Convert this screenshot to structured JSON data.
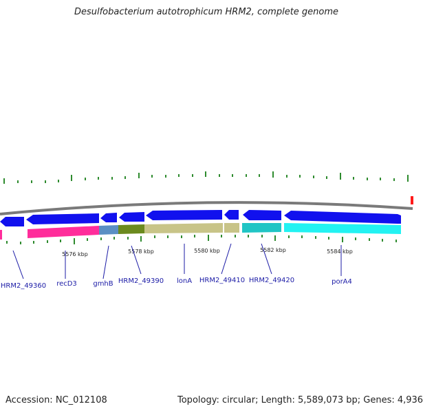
{
  "title": "Desulfobacterium autotrophicum HRM2, complete genome",
  "footer": {
    "accession": "Accession: NC_012108",
    "summary": "Topology: circular; Length: 5,589,073 bp; Genes: 4,936"
  },
  "scale_labels": [
    "5576 kbp",
    "5578 kbp",
    "5580 kbp",
    "5582 kbp",
    "5584 kbp"
  ],
  "genes": [
    {
      "name": "HRM2_49360"
    },
    {
      "name": "recD3"
    },
    {
      "name": "gmhB"
    },
    {
      "name": "HRM2_49390"
    },
    {
      "name": "lonA"
    },
    {
      "name": "HRM2_49410"
    },
    {
      "name": "HRM2_49420"
    },
    {
      "name": "porA4"
    }
  ],
  "colors": {
    "backbone": "#7a7a7a",
    "cds_arrow": "#1111ee",
    "tick": "#2e8b2e",
    "label": "#1a1aa6",
    "band_pink": "#ff2d9b",
    "band_steel": "#5b8fc4",
    "band_olive": "#6b8a1e",
    "band_khaki": "#c8c488",
    "band_teal": "#20c5c5",
    "band_cyan": "#22f2f2",
    "marker_red": "#ff1a1a"
  }
}
